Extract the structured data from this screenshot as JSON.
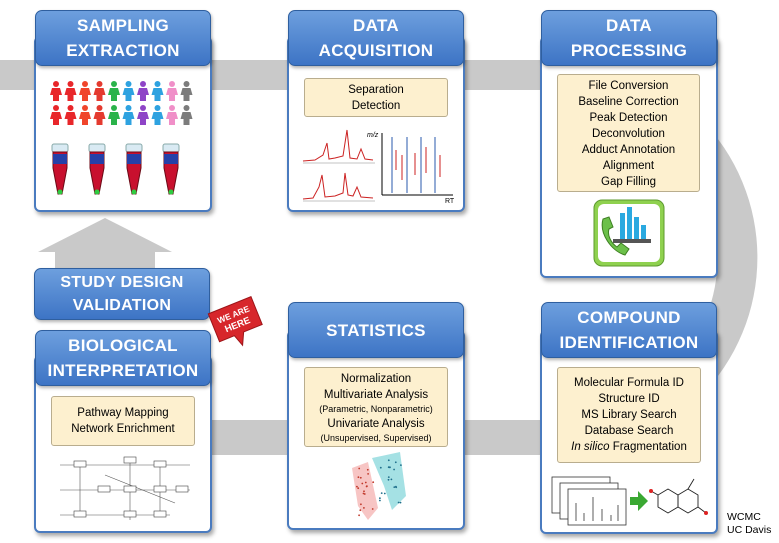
{
  "colors": {
    "header_blue": "#4a7bbf",
    "pathway_gray": "#c9c9c9",
    "box_cream": "#fdf0cf",
    "badge_red": "#d7262b"
  },
  "panels": {
    "sampling": {
      "title_line1": "SAMPLING",
      "title_line2": "EXTRACTION"
    },
    "acquisition": {
      "title_line1": "DATA",
      "title_line2": "ACQUISITION",
      "items": [
        "Separation",
        "Detection"
      ]
    },
    "processing": {
      "title_line1": "DATA",
      "title_line2": "PROCESSING",
      "items": [
        "File Conversion",
        "Baseline Correction",
        "Peak Detection",
        "Deconvolution",
        "Adduct Annotation",
        "Alignment",
        "Gap Filling"
      ]
    },
    "study_design": {
      "title_line1": "STUDY DESIGN",
      "title_line2": "VALIDATION"
    },
    "biological": {
      "title_line1": "BIOLOGICAL",
      "title_line2": "INTERPRETATION",
      "items": [
        "Pathway Mapping",
        "Network Enrichment"
      ]
    },
    "statistics": {
      "title": "STATISTICS",
      "items": [
        "Normalization",
        "Multivariate Analysis",
        "(Parametric, Nonparametric)",
        "Univariate Analysis",
        "(Unsupervised, Supervised)"
      ]
    },
    "compound": {
      "title_line1": "COMPOUND",
      "title_line2": "IDENTIFICATION",
      "items": [
        "Molecular Formula ID",
        "Structure ID",
        "MS Library Search",
        "Database Search",
        "In silico Fragmentation"
      ]
    }
  },
  "badge": {
    "line1": "WE ARE",
    "line2": "HERE"
  },
  "chromatogram": {
    "axis_y": "m/z",
    "axis_x": "RT"
  },
  "credit": {
    "line1": "WCMC",
    "line2": "UC Davis"
  },
  "people_colors": [
    "#e8262a",
    "#e8262a",
    "#f0452b",
    "#e43a2f",
    "#2ab34a",
    "#2ea2e0",
    "#8e44c7",
    "#2ea2e0",
    "#f08fc8",
    "#7c7c7c"
  ]
}
